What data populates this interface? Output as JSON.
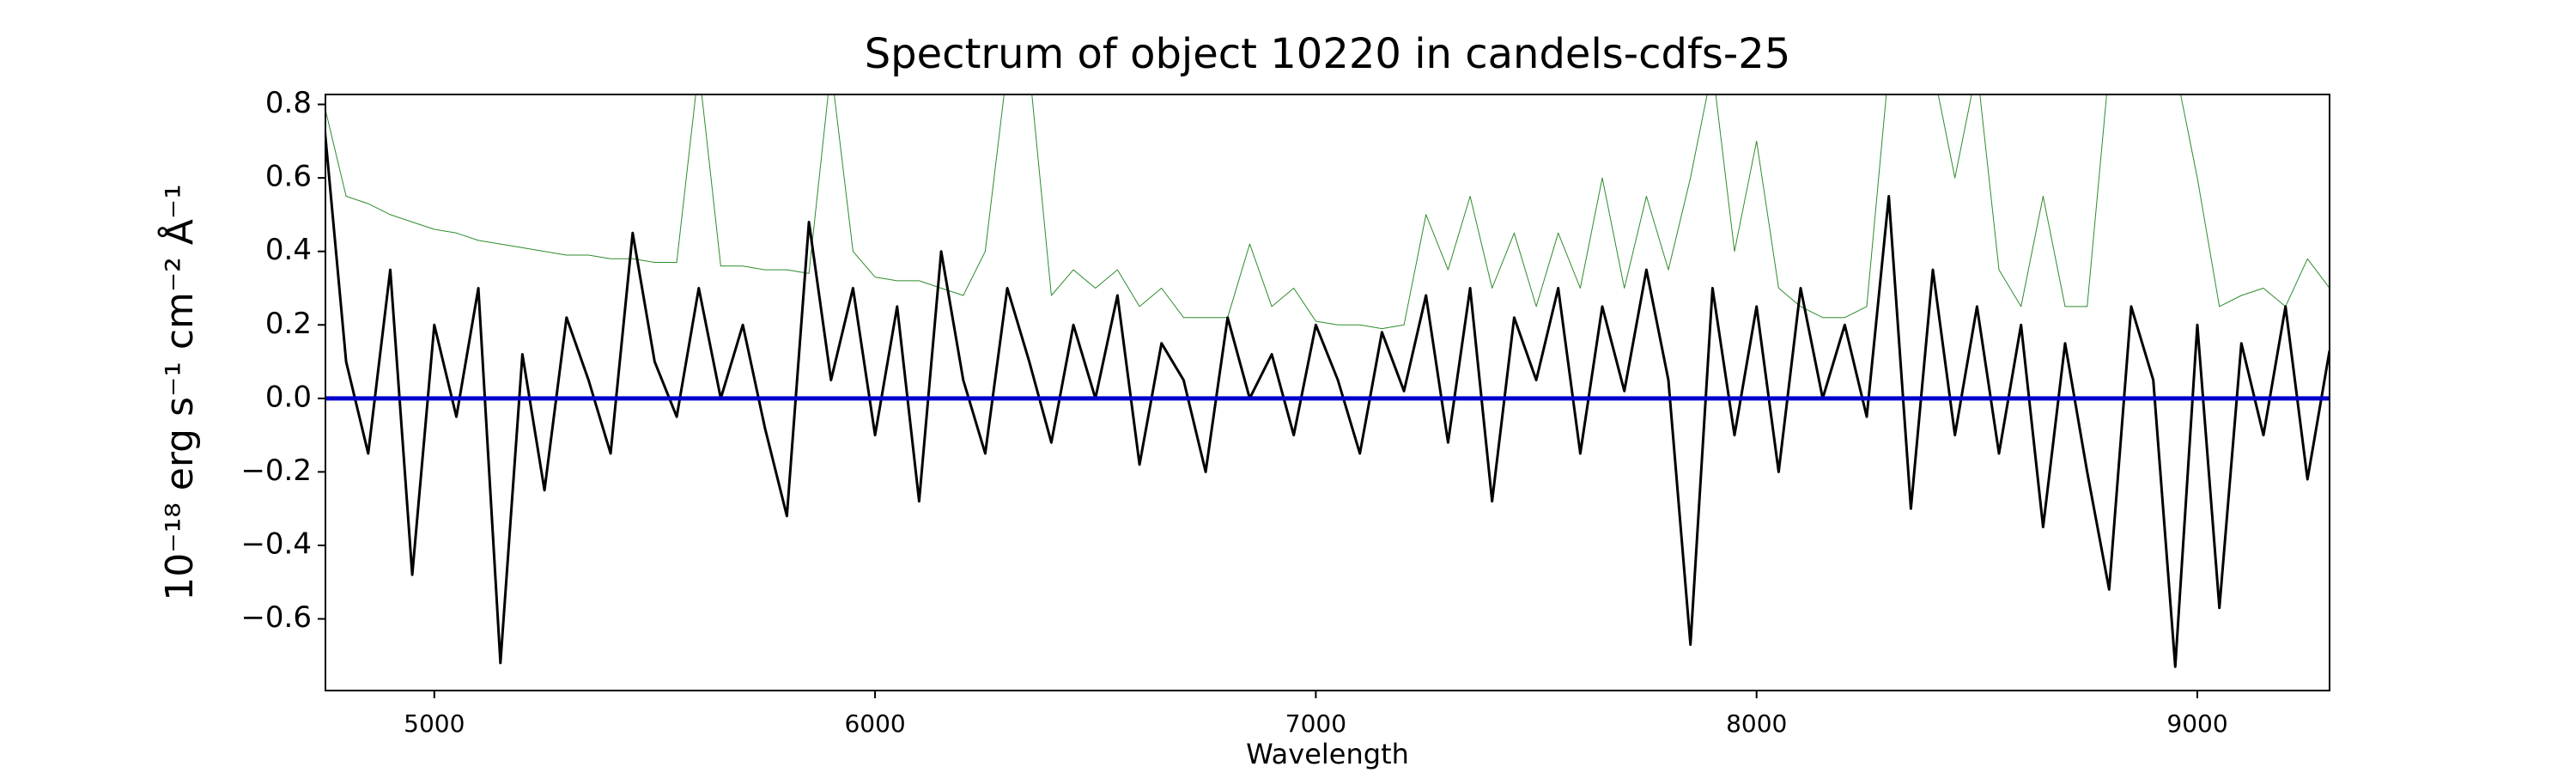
{
  "chart_data": {
    "type": "line",
    "title": "Spectrum of object 10220 in candels-cdfs-25",
    "xlabel": "Wavelength",
    "ylabel": "10⁻¹⁸ erg s⁻¹ cm⁻² Å⁻¹",
    "x": [
      4750,
      4800,
      4850,
      4900,
      4950,
      5000,
      5050,
      5100,
      5150,
      5200,
      5250,
      5300,
      5350,
      5400,
      5450,
      5500,
      5550,
      5600,
      5650,
      5700,
      5750,
      5800,
      5850,
      5900,
      5950,
      6000,
      6050,
      6100,
      6150,
      6200,
      6250,
      6300,
      6350,
      6400,
      6450,
      6500,
      6550,
      6600,
      6650,
      6700,
      6750,
      6800,
      6850,
      6900,
      6950,
      7000,
      7050,
      7100,
      7150,
      7200,
      7250,
      7300,
      7350,
      7400,
      7450,
      7500,
      7550,
      7600,
      7650,
      7700,
      7750,
      7800,
      7850,
      7900,
      7950,
      8000,
      8050,
      8100,
      8150,
      8200,
      8250,
      8300,
      8350,
      8400,
      8450,
      8500,
      8550,
      8600,
      8650,
      8700,
      8750,
      8800,
      8850,
      8900,
      8950,
      9000,
      9050,
      9100,
      9150,
      9200,
      9250,
      9300
    ],
    "series": [
      {
        "color": "#2e8b2e",
        "width": 1,
        "values": [
          0.8,
          0.55,
          0.53,
          0.5,
          0.48,
          0.46,
          0.45,
          0.43,
          0.42,
          0.41,
          0.4,
          0.39,
          0.39,
          0.38,
          0.38,
          0.37,
          0.37,
          0.9,
          0.36,
          0.36,
          0.35,
          0.35,
          0.34,
          0.9,
          0.4,
          0.33,
          0.32,
          0.32,
          0.3,
          0.28,
          0.4,
          0.9,
          0.9,
          0.28,
          0.35,
          0.3,
          0.35,
          0.25,
          0.3,
          0.22,
          0.22,
          0.22,
          0.42,
          0.25,
          0.3,
          0.21,
          0.2,
          0.2,
          0.19,
          0.2,
          0.5,
          0.35,
          0.55,
          0.3,
          0.45,
          0.25,
          0.45,
          0.3,
          0.6,
          0.3,
          0.55,
          0.35,
          0.6,
          0.9,
          0.4,
          0.7,
          0.3,
          0.25,
          0.22,
          0.22,
          0.25,
          0.9,
          0.9,
          0.9,
          0.6,
          0.9,
          0.35,
          0.25,
          0.55,
          0.25,
          0.25,
          0.9,
          0.9,
          0.9,
          0.9,
          0.6,
          0.25,
          0.28,
          0.3,
          0.25,
          0.38,
          0.3
        ]
      },
      {
        "color": "#000000",
        "width": 3,
        "values": [
          0.75,
          0.1,
          -0.15,
          0.35,
          -0.48,
          0.2,
          -0.05,
          0.3,
          -0.72,
          0.12,
          -0.25,
          0.22,
          0.05,
          -0.15,
          0.45,
          0.1,
          -0.05,
          0.3,
          0.0,
          0.2,
          -0.08,
          -0.32,
          0.48,
          0.05,
          0.3,
          -0.1,
          0.25,
          -0.28,
          0.4,
          0.05,
          -0.15,
          0.3,
          0.1,
          -0.12,
          0.2,
          0.0,
          0.28,
          -0.18,
          0.15,
          0.05,
          -0.2,
          0.22,
          0.0,
          0.12,
          -0.1,
          0.2,
          0.05,
          -0.15,
          0.18,
          0.02,
          0.28,
          -0.12,
          0.3,
          -0.28,
          0.22,
          0.05,
          0.3,
          -0.15,
          0.25,
          0.02,
          0.35,
          0.05,
          -0.67,
          0.3,
          -0.1,
          0.25,
          -0.2,
          0.3,
          0.0,
          0.2,
          -0.05,
          0.55,
          -0.3,
          0.35,
          -0.1,
          0.25,
          -0.15,
          0.2,
          -0.35,
          0.15,
          -0.2,
          -0.52,
          0.25,
          0.05,
          -0.73,
          0.2,
          -0.57,
          0.15,
          -0.1,
          0.25,
          -0.22,
          0.13
        ]
      }
    ],
    "reference_line": {
      "value": 0,
      "color": "#0000cc"
    },
    "xlim": [
      4753,
      9300
    ],
    "ylim": [
      -0.795,
      0.827
    ],
    "xticks": [
      5000,
      6000,
      7000,
      8000,
      9000
    ],
    "yticks": [
      {
        "value": -0.6,
        "label": "−0.6"
      },
      {
        "value": -0.4,
        "label": "−0.4"
      },
      {
        "value": -0.2,
        "label": "−0.2"
      },
      {
        "value": 0,
        "label": "0.0"
      },
      0.2,
      0.4,
      0.6,
      0.8
    ]
  }
}
